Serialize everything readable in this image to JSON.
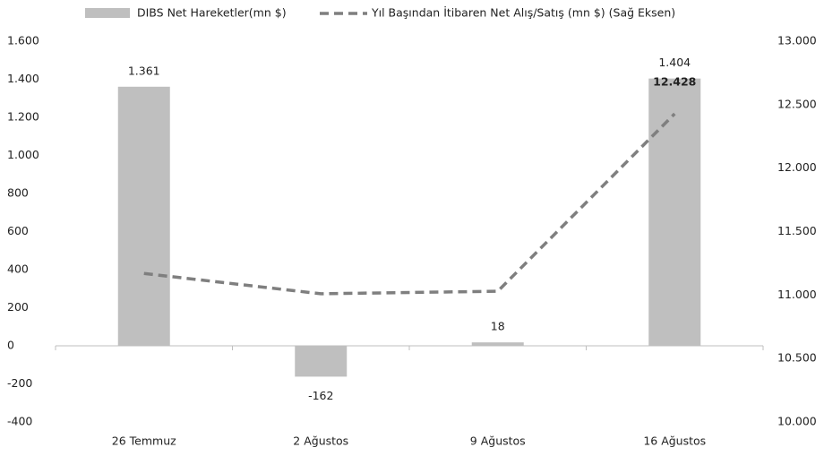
{
  "chart_data": {
    "type": "bar",
    "categories": [
      "26 Temmuz",
      "2 Ağustos",
      "9 Ağustos",
      "16 Ağustos"
    ],
    "series": [
      {
        "name": "DIBS Net Hareketler(mn $)",
        "type": "bar",
        "color": "#bfbfbf",
        "values": [
          1361,
          -162,
          18,
          1404
        ],
        "value_labels": [
          "1.361",
          "-162",
          "18",
          "1.404"
        ]
      },
      {
        "name": "Yıl Başından İtibaren Net Alış/Satış (mn $) (Sağ Eksen)",
        "type": "line",
        "axis": "y2",
        "color": "#7f7f7f",
        "dashed": true,
        "values": [
          11170,
          11010,
          11030,
          12428
        ],
        "value_labels": [
          null,
          null,
          null,
          "12.428"
        ]
      }
    ],
    "ylim": [
      -400,
      1600
    ],
    "yticks": [
      -400,
      -200,
      0,
      200,
      400,
      600,
      800,
      {
        "value": 1000,
        "label": "1.000"
      },
      {
        "value": 1200,
        "label": "1.200"
      },
      {
        "value": 1400,
        "label": "1.400"
      },
      {
        "value": 1600,
        "label": "1.600"
      }
    ],
    "y2lim": [
      10000,
      13000
    ],
    "y2ticks": [
      {
        "value": 10000,
        "label": "10.000"
      },
      {
        "value": 10500,
        "label": "10.500"
      },
      {
        "value": 11000,
        "label": "11.000"
      },
      {
        "value": 11500,
        "label": "11.500"
      },
      {
        "value": 12000,
        "label": "12.000"
      },
      {
        "value": 12500,
        "label": "12.500"
      },
      {
        "value": 13000,
        "label": "13.000"
      }
    ],
    "legend": "top"
  }
}
